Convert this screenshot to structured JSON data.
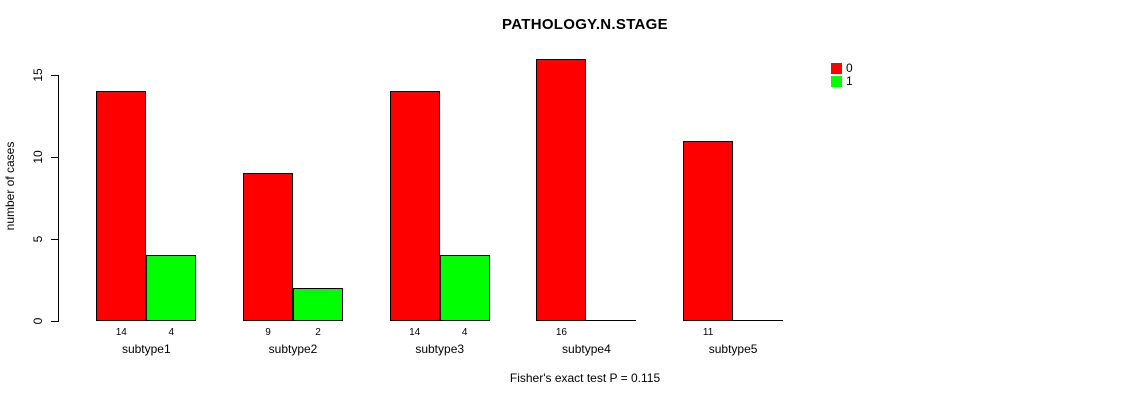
{
  "title": "PATHOLOGY.N.STAGE",
  "footer": "Fisher's exact test P = 0.115",
  "chart_data": {
    "type": "bar",
    "title": "PATHOLOGY.N.STAGE",
    "xlabel": "",
    "ylabel": "number of cases",
    "categories": [
      "subtype1",
      "subtype2",
      "subtype3",
      "subtype4",
      "subtype5"
    ],
    "series": [
      {
        "name": "0",
        "color": "#ff0000",
        "values": [
          14,
          9,
          14,
          16,
          11
        ]
      },
      {
        "name": "1",
        "color": "#00ff00",
        "values": [
          4,
          2,
          4,
          0,
          0
        ]
      }
    ],
    "bar_value_labels": [
      [
        "14",
        "4"
      ],
      [
        "9",
        "2"
      ],
      [
        "14",
        "4"
      ],
      [
        "16",
        ""
      ],
      [
        "11",
        ""
      ]
    ],
    "y_ticks": [
      0,
      5,
      10,
      15
    ],
    "ylim": [
      0,
      16.8
    ],
    "grid": false,
    "legend_position": "top-right",
    "annotation": "Fisher's exact test P = 0.115"
  }
}
